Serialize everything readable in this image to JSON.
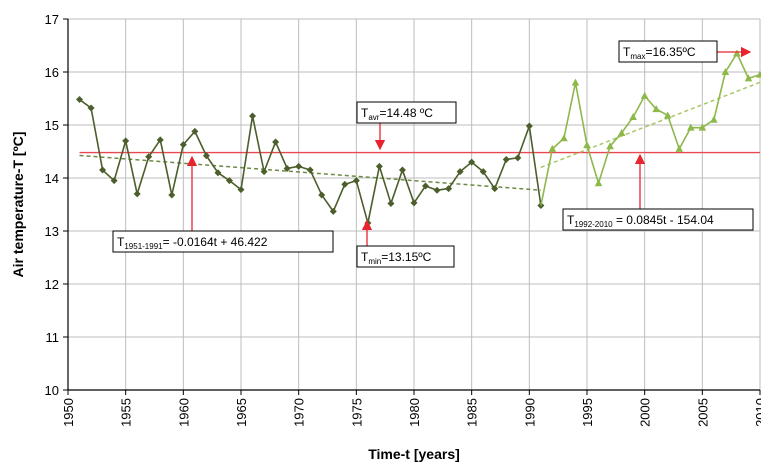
{
  "chart_data": {
    "type": "line",
    "xlabel": "Time-t [years]",
    "ylabel": "Air temperature-T [ºC]",
    "xlim": [
      1950,
      2010
    ],
    "ylim": [
      10,
      17
    ],
    "x_ticks": [
      "1950",
      "1955",
      "1960",
      "1965",
      "1970",
      "1975",
      "1980",
      "1985",
      "1990",
      "1995",
      "2000",
      "2005",
      "2010"
    ],
    "y_ticks": [
      "10",
      "11",
      "12",
      "13",
      "14",
      "15",
      "16",
      "17"
    ],
    "grid": true,
    "series": [
      {
        "color": "#4b5e2b",
        "marker": "diamond",
        "x": [
          1951,
          1952,
          1953,
          1954,
          1955,
          1956,
          1957,
          1958,
          1959,
          1960,
          1961,
          1962,
          1963,
          1964,
          1965,
          1966,
          1967,
          1968,
          1969,
          1970,
          1971,
          1972,
          1973,
          1974,
          1975,
          1976,
          1977,
          1978,
          1979,
          1980,
          1981,
          1982,
          1983,
          1984,
          1985,
          1986,
          1987,
          1988,
          1989,
          1990,
          1991
        ],
        "values": [
          15.48,
          15.32,
          14.15,
          13.95,
          14.7,
          13.7,
          14.4,
          14.72,
          13.68,
          14.63,
          14.88,
          14.42,
          14.1,
          13.95,
          13.78,
          15.17,
          14.12,
          14.68,
          14.18,
          14.22,
          14.15,
          13.68,
          13.37,
          13.88,
          13.95,
          13.15,
          14.22,
          13.52,
          14.15,
          13.53,
          13.85,
          13.77,
          13.8,
          14.12,
          14.3,
          14.12,
          13.8,
          14.35,
          14.38,
          14.98,
          13.48
        ]
      },
      {
        "color": "#8db84a",
        "marker": "triangle",
        "x": [
          1991,
          1992,
          1993,
          1994,
          1995,
          1996,
          1997,
          1998,
          1999,
          2000,
          2001,
          2002,
          2003,
          2004,
          2005,
          2006,
          2007,
          2008,
          2009,
          2010
        ],
        "values": [
          13.48,
          14.55,
          14.75,
          15.8,
          14.62,
          13.9,
          14.6,
          14.85,
          15.15,
          15.55,
          15.3,
          15.18,
          14.55,
          14.95,
          14.95,
          15.1,
          16.0,
          16.35,
          15.88,
          15.95
        ]
      }
    ],
    "reference_lines": [
      {
        "kind": "average",
        "y": 14.48,
        "color": "#e8484f"
      },
      {
        "kind": "trend",
        "from": 1951,
        "to": 1991,
        "slope": -0.0164,
        "intercept": 46.422,
        "color": "#6d8a45"
      },
      {
        "kind": "trend",
        "from": 1991,
        "to": 2010,
        "slope": 0.0845,
        "intercept": -154.04,
        "color": "#a5c964"
      }
    ],
    "annotations": [
      {
        "main": "T",
        "sub": "avr",
        "after": "=14.48 ºC"
      },
      {
        "main": "T",
        "sub": "max",
        "after": "=16.35ºC"
      },
      {
        "main": "T",
        "sub": "min",
        "after": "=13.15ºC"
      },
      {
        "main": "T",
        "sub": "1951-1991",
        "after": "= -0.0164t + 46.422"
      },
      {
        "main": "T",
        "sub": "1992-2010",
        "after": " = 0.0845t - 154.04"
      }
    ]
  }
}
